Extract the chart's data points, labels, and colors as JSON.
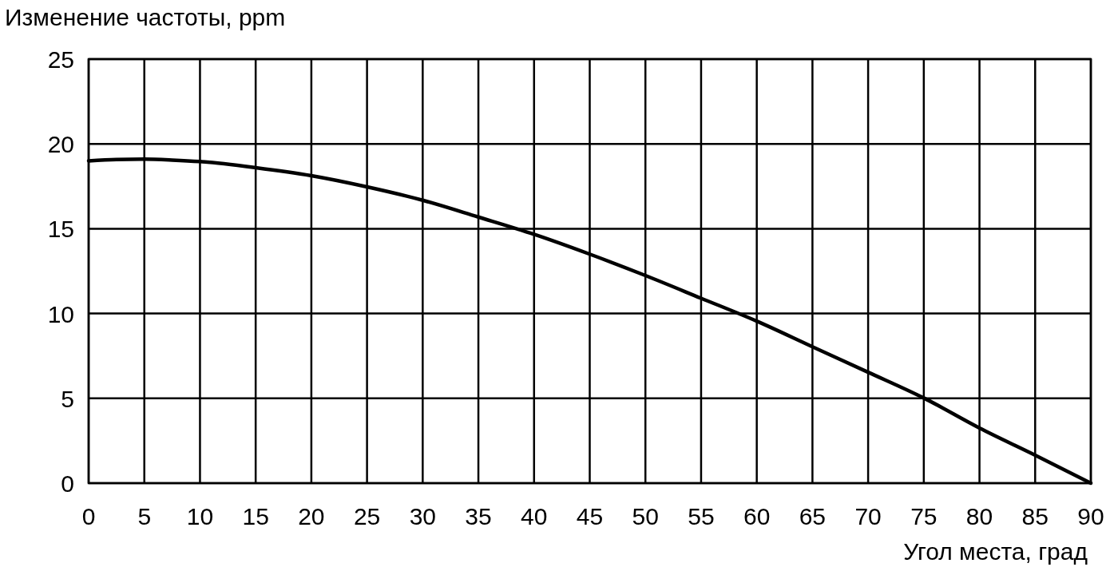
{
  "chart_data": {
    "type": "line",
    "xlabel": "Угол места, град",
    "ylabel": "Изменение частоты, ppm",
    "x": [
      0,
      2.5,
      5,
      7.5,
      10,
      15,
      20,
      25,
      30,
      35,
      40,
      45,
      50,
      55,
      60,
      65,
      70,
      75,
      80,
      85,
      90
    ],
    "series": [
      {
        "color": "#000000",
        "values": [
          19.0,
          19.08,
          19.1,
          19.05,
          18.96,
          18.6,
          18.13,
          17.47,
          16.68,
          15.69,
          14.67,
          13.5,
          12.24,
          10.9,
          9.55,
          8.04,
          6.54,
          5.02,
          3.25,
          1.65,
          0
        ]
      }
    ],
    "xlim": [
      0,
      90
    ],
    "ylim": [
      0,
      25
    ],
    "xticks": [
      0,
      5,
      10,
      15,
      20,
      25,
      30,
      35,
      40,
      45,
      50,
      55,
      60,
      65,
      70,
      75,
      80,
      85,
      90
    ],
    "yticks": [
      0,
      5,
      10,
      15,
      20,
      25
    ],
    "grid": true
  }
}
